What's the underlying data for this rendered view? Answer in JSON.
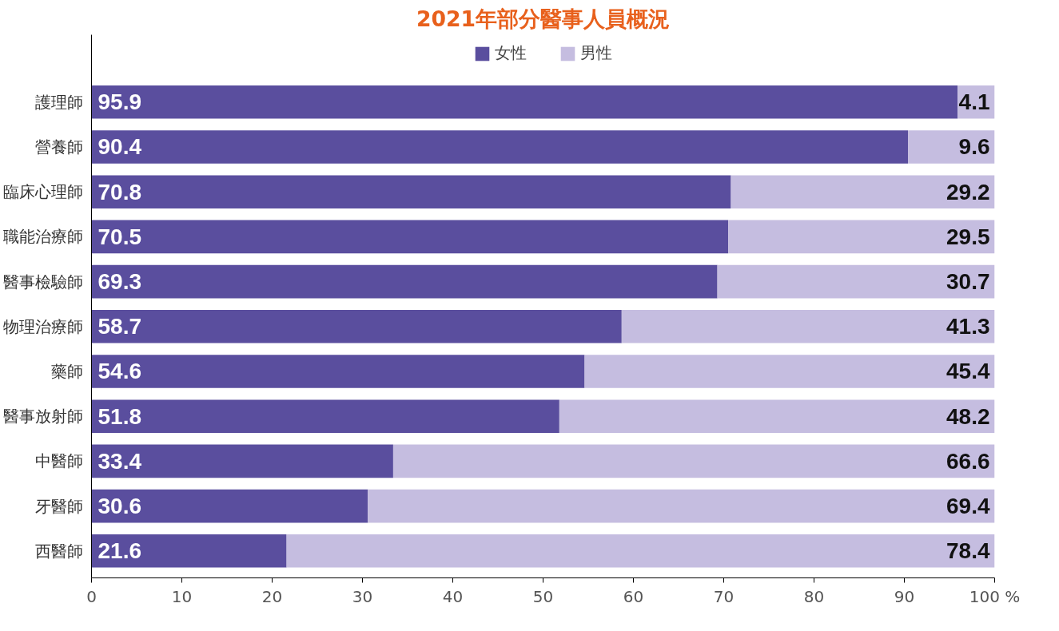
{
  "chart_data": {
    "type": "bar",
    "orientation": "horizontal",
    "stacked": true,
    "title": "2021年部分醫事人員概況",
    "categories": [
      "護理師",
      "營養師",
      "臨床心理師",
      "職能治療師",
      "醫事檢驗師",
      "物理治療師",
      "藥師",
      "醫事放射師",
      "中醫師",
      "牙醫師",
      "西醫師"
    ],
    "series": [
      {
        "name": "女性",
        "color": "#5a4e9e",
        "values": [
          95.9,
          90.4,
          70.8,
          70.5,
          69.3,
          58.7,
          54.6,
          51.8,
          33.4,
          30.6,
          21.6
        ]
      },
      {
        "name": "男性",
        "color": "#c5bde0",
        "values": [
          4.1,
          9.6,
          29.2,
          29.5,
          30.7,
          41.3,
          45.4,
          48.2,
          66.6,
          69.4,
          78.4
        ]
      }
    ],
    "xlim": [
      0,
      100
    ],
    "xticks": [
      0,
      10,
      20,
      30,
      40,
      50,
      60,
      70,
      80,
      90,
      {
        "value": 100,
        "label": "100 %"
      }
    ],
    "data_labels": true,
    "legend": "top",
    "grid": false
  }
}
